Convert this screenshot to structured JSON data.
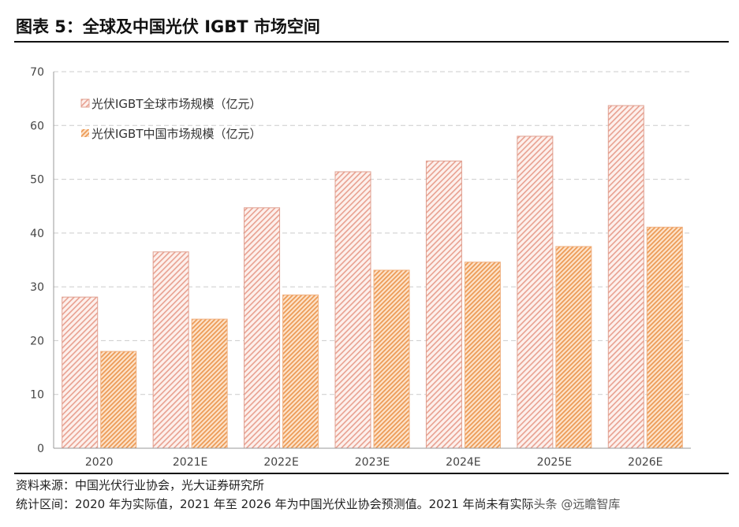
{
  "title": "图表 5：全球及中国光伏 IGBT 市场空间",
  "chart_data": {
    "type": "bar",
    "categories": [
      "2020",
      "2021E",
      "2022E",
      "2023E",
      "2024E",
      "2025E",
      "2026E"
    ],
    "series": [
      {
        "name": "光伏IGBT全球市场规模（亿元）",
        "values": [
          28.1,
          36.5,
          44.7,
          51.4,
          53.4,
          58.0,
          63.7
        ],
        "color": "#e8a090"
      },
      {
        "name": "光伏IGBT中国市场规模（亿元）",
        "values": [
          18.0,
          24.0,
          28.5,
          33.1,
          34.6,
          37.5,
          41.1
        ],
        "color": "#f0a060"
      }
    ],
    "ylim": [
      0,
      70
    ],
    "yticks": [
      0,
      10,
      20,
      30,
      40,
      50,
      60,
      70
    ],
    "grid": true,
    "legend": "top-left",
    "pattern": "diagonal-hatch"
  },
  "notes": {
    "source": "资料来源：中国光伏行业协会，光大证券研究所",
    "scope": "统计区间：2020 年为实际值，2021 年至 2026 年为中国光伏业协会预测值。2021 年尚未有实际",
    "watermark": "头条 @远瞻智库"
  }
}
